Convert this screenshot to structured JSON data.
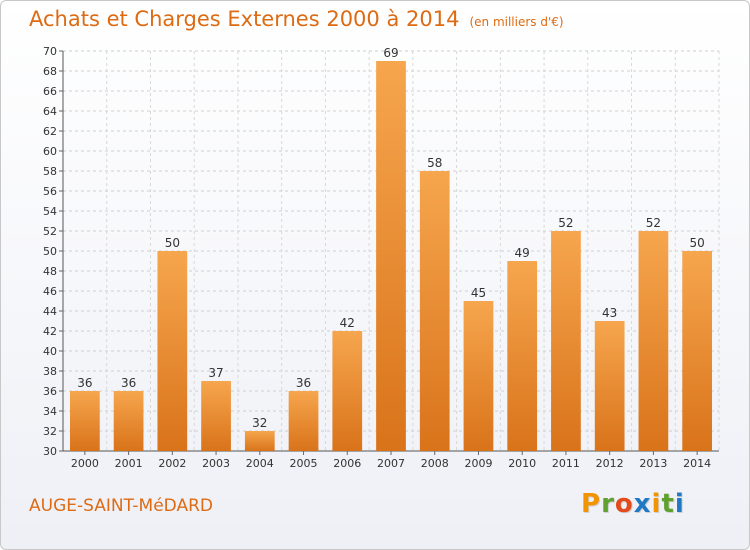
{
  "header": {
    "title": "Achats et Charges Externes 2000 à 2014",
    "subtitle": "(en milliers d'€)"
  },
  "footer": {
    "place": "AUGE-SAINT-MéDARD",
    "logo": [
      "P",
      "r",
      "o",
      "x",
      "i",
      "t",
      "i"
    ]
  },
  "colors": {
    "bar_top": "#f6a64e",
    "bar_bottom": "#d9731a",
    "accent": "#dd6b14",
    "logo": [
      "#f29400",
      "#5fa12e",
      "#e24b1b",
      "#1f79c3",
      "#f29400",
      "#5fa12e",
      "#1f79c3"
    ]
  },
  "chart_data": {
    "type": "bar",
    "title": "Achats et Charges Externes 2000 à 2014",
    "subtitle": "(en milliers d'€)",
    "categories": [
      "2000",
      "2001",
      "2002",
      "2003",
      "2004",
      "2005",
      "2006",
      "2007",
      "2008",
      "2009",
      "2010",
      "2011",
      "2012",
      "2013",
      "2014"
    ],
    "values": [
      36,
      36,
      50,
      37,
      32,
      36,
      42,
      69,
      58,
      45,
      49,
      52,
      43,
      52,
      50
    ],
    "ylim": [
      30,
      70
    ],
    "ytick_step": 2,
    "grid": true,
    "data_labels": true,
    "xlabel": "",
    "ylabel": ""
  }
}
